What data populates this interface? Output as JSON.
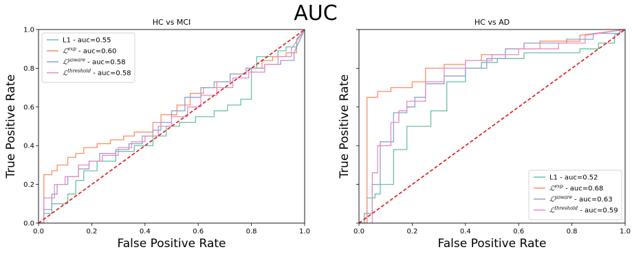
{
  "figure": {
    "suptitle": "AUC"
  },
  "chart_data": [
    {
      "type": "line",
      "title": "HC vs MCI",
      "xlabel": "False Positive Rate",
      "ylabel": "True Positive Rate",
      "xlim": [
        0,
        1
      ],
      "ylim": [
        0,
        1
      ],
      "xticks": [
        "0.0",
        "0.2",
        "0.4",
        "0.6",
        "0.8",
        "1.0"
      ],
      "yticks": [
        "0.0",
        "0.2",
        "0.4",
        "0.6",
        "0.8",
        "1.0"
      ],
      "legend": "upper-left",
      "series": [
        {
          "name": "L1 - auc=0.55",
          "color": "#66c2a5",
          "x": [
            0,
            0.02,
            0.02,
            0.05,
            0.05,
            0.11,
            0.11,
            0.14,
            0.14,
            0.17,
            0.17,
            0.22,
            0.22,
            0.29,
            0.29,
            0.36,
            0.36,
            0.43,
            0.43,
            0.48,
            0.48,
            0.53,
            0.53,
            0.59,
            0.59,
            0.66,
            0.66,
            0.71,
            0.71,
            0.76,
            0.76,
            0.8,
            0.8,
            0.82,
            0.82,
            0.86,
            0.86,
            0.9,
            0.9,
            0.93,
            0.93,
            0.97,
            0.97,
            1.0
          ],
          "y": [
            0,
            0,
            0.05,
            0.05,
            0.1,
            0.1,
            0.15,
            0.15,
            0.22,
            0.22,
            0.27,
            0.27,
            0.32,
            0.32,
            0.37,
            0.37,
            0.4,
            0.4,
            0.45,
            0.45,
            0.5,
            0.5,
            0.52,
            0.52,
            0.55,
            0.55,
            0.58,
            0.58,
            0.61,
            0.61,
            0.64,
            0.64,
            0.8,
            0.8,
            0.86,
            0.86,
            0.86,
            0.86,
            0.89,
            0.89,
            0.91,
            0.91,
            0.95,
            1.0
          ]
        },
        {
          "name": "Lexp - auc=0.60",
          "color": "#fc8d62",
          "x": [
            0,
            0.02,
            0.02,
            0.05,
            0.05,
            0.07,
            0.07,
            0.11,
            0.11,
            0.14,
            0.14,
            0.17,
            0.17,
            0.22,
            0.22,
            0.27,
            0.27,
            0.32,
            0.32,
            0.36,
            0.36,
            0.43,
            0.43,
            0.46,
            0.46,
            0.52,
            0.52,
            0.57,
            0.57,
            0.62,
            0.62,
            0.67,
            0.67,
            0.72,
            0.72,
            0.78,
            0.78,
            0.84,
            0.84,
            0.88,
            0.88,
            0.93,
            0.93,
            0.97,
            0.97,
            1.0
          ],
          "y": [
            0,
            0,
            0.25,
            0.25,
            0.27,
            0.27,
            0.3,
            0.3,
            0.34,
            0.34,
            0.36,
            0.36,
            0.39,
            0.39,
            0.41,
            0.41,
            0.43,
            0.43,
            0.45,
            0.45,
            0.47,
            0.47,
            0.52,
            0.52,
            0.56,
            0.56,
            0.61,
            0.61,
            0.67,
            0.67,
            0.7,
            0.7,
            0.73,
            0.73,
            0.77,
            0.77,
            0.8,
            0.8,
            0.84,
            0.84,
            0.86,
            0.86,
            0.88,
            0.88,
            0.91,
            1.0
          ]
        },
        {
          "name": "Lyaware - auc=0.58",
          "color": "#8da0cb",
          "x": [
            0,
            0.02,
            0.02,
            0.05,
            0.05,
            0.07,
            0.07,
            0.11,
            0.11,
            0.15,
            0.15,
            0.19,
            0.19,
            0.23,
            0.23,
            0.29,
            0.29,
            0.34,
            0.34,
            0.39,
            0.39,
            0.43,
            0.43,
            0.46,
            0.46,
            0.5,
            0.5,
            0.55,
            0.55,
            0.61,
            0.61,
            0.66,
            0.66,
            0.72,
            0.72,
            0.78,
            0.78,
            0.85,
            0.85,
            0.91,
            0.91,
            0.96,
            0.96,
            1.0
          ],
          "y": [
            0,
            0,
            0.07,
            0.07,
            0.15,
            0.15,
            0.2,
            0.2,
            0.24,
            0.24,
            0.28,
            0.28,
            0.32,
            0.32,
            0.36,
            0.36,
            0.38,
            0.38,
            0.41,
            0.41,
            0.45,
            0.45,
            0.48,
            0.48,
            0.52,
            0.52,
            0.58,
            0.58,
            0.65,
            0.65,
            0.7,
            0.7,
            0.73,
            0.73,
            0.77,
            0.77,
            0.8,
            0.8,
            0.82,
            0.82,
            0.84,
            0.84,
            0.88,
            1.0
          ]
        },
        {
          "name": "Lthreshold - auc=0.58",
          "color": "#e78ac3",
          "x": [
            0,
            0.02,
            0.02,
            0.06,
            0.06,
            0.1,
            0.1,
            0.15,
            0.15,
            0.19,
            0.19,
            0.24,
            0.24,
            0.3,
            0.3,
            0.35,
            0.35,
            0.4,
            0.4,
            0.45,
            0.45,
            0.5,
            0.5,
            0.56,
            0.56,
            0.61,
            0.61,
            0.67,
            0.67,
            0.73,
            0.73,
            0.79,
            0.79,
            0.85,
            0.85,
            0.9,
            0.9,
            0.95,
            0.95,
            1.0
          ],
          "y": [
            0,
            0,
            0.13,
            0.13,
            0.2,
            0.2,
            0.24,
            0.24,
            0.3,
            0.3,
            0.32,
            0.32,
            0.35,
            0.35,
            0.39,
            0.39,
            0.42,
            0.42,
            0.45,
            0.45,
            0.5,
            0.5,
            0.55,
            0.55,
            0.6,
            0.6,
            0.66,
            0.66,
            0.7,
            0.7,
            0.75,
            0.75,
            0.78,
            0.78,
            0.82,
            0.82,
            0.86,
            0.86,
            0.9,
            1.0
          ]
        },
        {
          "name": "",
          "color": "#e41a1c",
          "dashed": true,
          "x": [
            0,
            1
          ],
          "y": [
            0,
            1
          ]
        }
      ]
    },
    {
      "type": "line",
      "title": "HC vs AD",
      "xlabel": "False Positive Rate",
      "ylabel": "True Positive Rate",
      "xlim": [
        0,
        1
      ],
      "ylim": [
        0,
        1
      ],
      "xticks": [
        "0.0",
        "0.2",
        "0.4",
        "0.6",
        "0.8",
        "1.0"
      ],
      "yticks": [],
      "legend": "lower-right",
      "series": [
        {
          "name": "L1 - auc=0.52",
          "color": "#66c2a5",
          "x": [
            0,
            0.03,
            0.03,
            0.06,
            0.06,
            0.08,
            0.08,
            0.13,
            0.13,
            0.18,
            0.18,
            0.27,
            0.27,
            0.33,
            0.33,
            0.4,
            0.4,
            0.46,
            0.46,
            0.52,
            0.52,
            0.62,
            0.62,
            0.83,
            0.83,
            0.9,
            0.9,
            0.96,
            0.96,
            1.0
          ],
          "y": [
            0,
            0,
            0.13,
            0.13,
            0.15,
            0.15,
            0.2,
            0.2,
            0.38,
            0.38,
            0.5,
            0.5,
            0.58,
            0.58,
            0.73,
            0.73,
            0.8,
            0.8,
            0.83,
            0.83,
            0.85,
            0.85,
            0.88,
            0.88,
            0.9,
            0.9,
            0.93,
            0.93,
            0.97,
            1.0
          ]
        },
        {
          "name": "Lexp - auc=0.68",
          "color": "#fc8d62",
          "x": [
            0,
            0.03,
            0.03,
            0.07,
            0.07,
            0.12,
            0.12,
            0.2,
            0.2,
            0.25,
            0.25,
            0.32,
            0.32,
            0.4,
            0.4,
            0.46,
            0.46,
            0.55,
            0.55,
            0.68,
            0.68,
            0.83,
            0.83,
            1.0
          ],
          "y": [
            0,
            0,
            0.65,
            0.65,
            0.68,
            0.68,
            0.7,
            0.7,
            0.73,
            0.73,
            0.8,
            0.8,
            0.82,
            0.82,
            0.84,
            0.84,
            0.87,
            0.87,
            0.9,
            0.9,
            0.94,
            0.94,
            0.97,
            1.0
          ]
        },
        {
          "name": "Lyaware - auc=0.63",
          "color": "#8da0cb",
          "x": [
            0,
            0.02,
            0.02,
            0.05,
            0.05,
            0.08,
            0.08,
            0.13,
            0.13,
            0.18,
            0.18,
            0.21,
            0.21,
            0.25,
            0.25,
            0.32,
            0.32,
            0.4,
            0.4,
            0.48,
            0.48,
            0.55,
            0.55,
            0.62,
            0.62,
            0.78,
            0.78,
            0.88,
            0.88,
            0.98,
            0.98,
            1.0
          ],
          "y": [
            0,
            0,
            0.05,
            0.05,
            0.2,
            0.2,
            0.42,
            0.42,
            0.57,
            0.57,
            0.6,
            0.6,
            0.65,
            0.65,
            0.72,
            0.72,
            0.76,
            0.76,
            0.8,
            0.8,
            0.85,
            0.85,
            0.9,
            0.9,
            0.93,
            0.93,
            0.95,
            0.95,
            0.98,
            0.98,
            1.0,
            1.0
          ]
        },
        {
          "name": "Lthreshold - auc=0.59",
          "color": "#e78ac3",
          "x": [
            0,
            0.05,
            0.05,
            0.07,
            0.07,
            0.12,
            0.12,
            0.15,
            0.15,
            0.18,
            0.18,
            0.25,
            0.25,
            0.32,
            0.32,
            0.4,
            0.4,
            0.5,
            0.5,
            0.6,
            0.6,
            0.75,
            0.75,
            0.85,
            0.85,
            1.0
          ],
          "y": [
            0,
            0,
            0.26,
            0.26,
            0.4,
            0.4,
            0.52,
            0.52,
            0.58,
            0.58,
            0.63,
            0.63,
            0.73,
            0.73,
            0.8,
            0.8,
            0.84,
            0.84,
            0.87,
            0.87,
            0.9,
            0.9,
            0.93,
            0.93,
            0.97,
            1.0
          ]
        },
        {
          "name": "",
          "color": "#e41a1c",
          "dashed": true,
          "x": [
            0,
            1
          ],
          "y": [
            0,
            1
          ]
        }
      ]
    }
  ],
  "legends": [
    [
      {
        "base": "L1",
        "sup": "",
        "suffix": " - auc=0.55"
      },
      {
        "base": "ℒ",
        "sup": "exp",
        "suffix": " - auc=0.60"
      },
      {
        "base": "ℒ",
        "sup": "yaware",
        "suffix": " - auc=0.58"
      },
      {
        "base": "ℒ",
        "sup": "threshold",
        "suffix": " - auc=0.58"
      }
    ],
    [
      {
        "base": "L1",
        "sup": "",
        "suffix": " - auc=0.52"
      },
      {
        "base": "ℒ",
        "sup": "exp",
        "suffix": " - auc=0.68"
      },
      {
        "base": "ℒ",
        "sup": "yaware",
        "suffix": " - auc=0.63"
      },
      {
        "base": "ℒ",
        "sup": "threshold",
        "suffix": " - auc=0.59"
      }
    ]
  ]
}
